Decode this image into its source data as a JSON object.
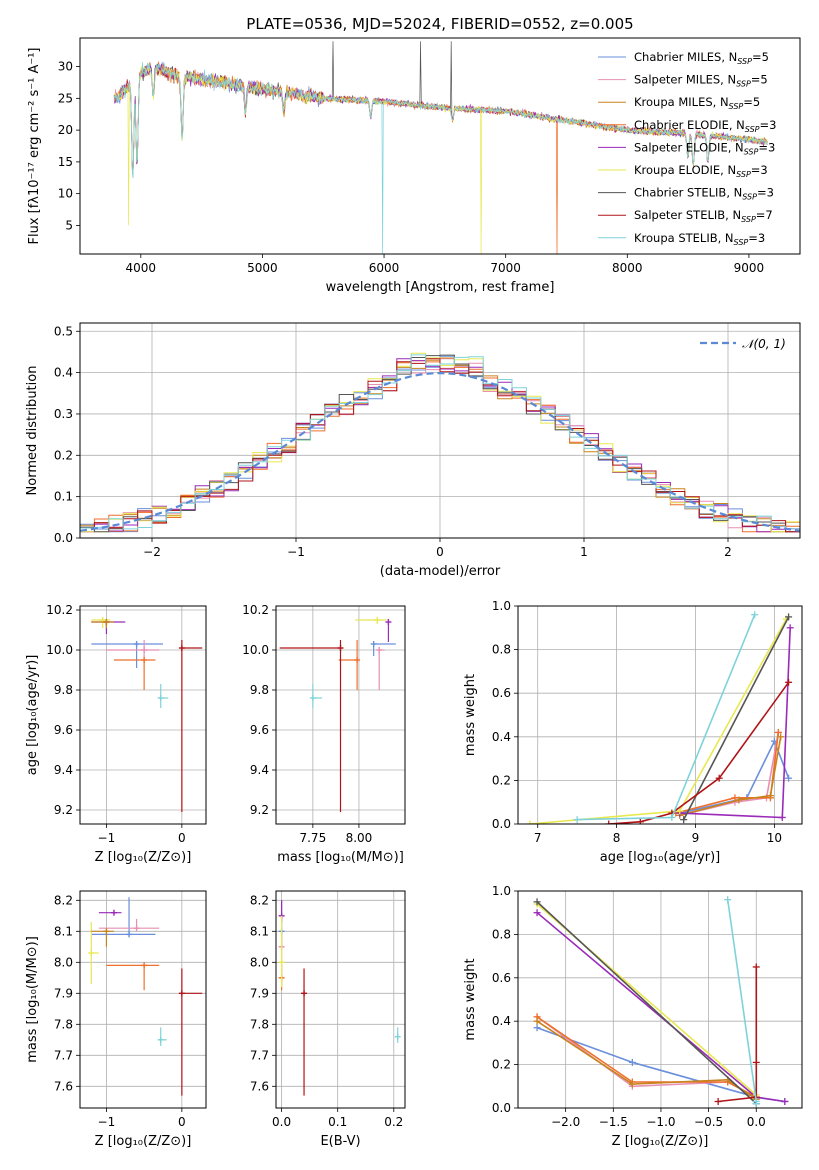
{
  "figure": {
    "title": "PLATE=0536, MJD=52024, FIBERID=0552, z=0.005",
    "colors": [
      "#6a8fdc",
      "#e88fb4",
      "#c8841c",
      "#ef6f2c",
      "#9a2ab8",
      "#e8e850",
      "#555555",
      "#b01418",
      "#7ed3da"
    ]
  },
  "chart_data": [
    {
      "id": "spectrum",
      "type": "line",
      "xlabel": "wavelength [Angstrom, rest frame]",
      "ylabel": "Flux [fλ10⁻¹⁷ erg cm⁻² s⁻¹ A⁻¹]",
      "xlim": [
        3500,
        9420
      ],
      "ylim": [
        0.5,
        34.5
      ],
      "xticks": [
        4000,
        5000,
        6000,
        7000,
        8000,
        9000
      ],
      "yticks": [
        5,
        10,
        15,
        20,
        25,
        30
      ],
      "legend_position": "top-right",
      "continuum": {
        "x": [
          3800,
          3900,
          4000,
          4100,
          4300,
          4500,
          5000,
          5500,
          6000,
          6500,
          7000,
          7500,
          8000,
          8500,
          9000,
          9200
        ],
        "y": [
          25,
          27,
          29,
          30,
          28.5,
          28,
          26.5,
          25,
          24.5,
          23.5,
          23,
          21.5,
          20,
          19.5,
          18.5,
          18
        ]
      },
      "series": [
        {
          "name": "Chabrier MILES, N",
          "sub": "SSP",
          "suffix": "=5"
        },
        {
          "name": "Salpeter MILES, N",
          "sub": "SSP",
          "suffix": "=5"
        },
        {
          "name": "Kroupa MILES, N",
          "sub": "SSP",
          "suffix": "=5"
        },
        {
          "name": "Chabrier ELODIE, N",
          "sub": "SSP",
          "suffix": "=3"
        },
        {
          "name": "Salpeter ELODIE, N",
          "sub": "SSP",
          "suffix": "=3"
        },
        {
          "name": "Kroupa ELODIE, N",
          "sub": "SSP",
          "suffix": "=3"
        },
        {
          "name": "Chabrier STELIB, N",
          "sub": "SSP",
          "suffix": "=3"
        },
        {
          "name": "Salpeter STELIB, N",
          "sub": "SSP",
          "suffix": "=7"
        },
        {
          "name": "Kroupa STELIB, N",
          "sub": "SSP",
          "suffix": "=3"
        }
      ]
    },
    {
      "id": "residuals",
      "type": "line",
      "xlabel": "(data-model)/error",
      "ylabel": "Normed distribution",
      "xlim": [
        -2.5,
        2.5
      ],
      "ylim": [
        0,
        0.52
      ],
      "xticks": [
        -2,
        -1,
        0,
        1,
        2
      ],
      "yticks": [
        0.0,
        0.1,
        0.2,
        0.3,
        0.4,
        0.5
      ],
      "grid": true,
      "legend_position": "top-right",
      "legend": "𝒩(0, 1)",
      "bin_width": 0.1
    },
    {
      "id": "age-vs-z",
      "type": "scatter",
      "xlabel": "Z [log₁₀(Z/Z⊙)]",
      "ylabel": "age  [log₁₀(age/yr)]",
      "xlim": [
        -1.35,
        0.32
      ],
      "ylim": [
        9.13,
        10.22
      ],
      "xticks": [
        -1,
        0
      ],
      "yticks": [
        9.2,
        9.4,
        9.6,
        9.8,
        10.0,
        10.2
      ],
      "grid": true,
      "points": [
        {
          "x": -0.6,
          "xerr": [
            0.6,
            0.35
          ],
          "y": 10.03,
          "yerr": [
            0.12,
            0.0
          ],
          "c": 0
        },
        {
          "x": -0.5,
          "xerr": [
            0.5,
            0.2
          ],
          "y": 10.0,
          "yerr": [
            0.05,
            0.05
          ],
          "c": 1
        },
        {
          "x": -0.5,
          "xerr": [
            0.4,
            0.15
          ],
          "y": 9.95,
          "yerr": [
            0.15,
            0.0
          ],
          "c": 3
        },
        {
          "x": -1.0,
          "xerr": [
            0.2,
            0.25
          ],
          "y": 10.14,
          "yerr": [
            0.06,
            0.01
          ],
          "c": 4
        },
        {
          "x": -1.05,
          "xerr": [
            0.15,
            0.1
          ],
          "y": 10.15,
          "yerr": [
            0.04,
            0.0
          ],
          "c": 5
        },
        {
          "x": -1.0,
          "xerr": [
            0.2,
            0.1
          ],
          "y": 10.14,
          "yerr": [
            0.03,
            0.0
          ],
          "c": 2
        },
        {
          "x": -0.28,
          "xerr": [
            0.02,
            0.1
          ],
          "y": 9.76,
          "yerr": [
            0.05,
            0.07
          ],
          "c": 8
        },
        {
          "x": 0.0,
          "xerr": [
            0.0,
            0.27
          ],
          "y": 10.01,
          "yerr": [
            0.82,
            0.04
          ],
          "c": 7
        }
      ]
    },
    {
      "id": "age-vs-mass",
      "type": "scatter",
      "xlabel": "mass [log₁₀(M/M⊙)]",
      "ylabel": "",
      "xlim": [
        7.55,
        8.25
      ],
      "ylim": [
        9.13,
        10.22
      ],
      "xticks": [
        7.75,
        8.0
      ],
      "yticks": [
        9.2,
        9.4,
        9.6,
        9.8,
        10.0,
        10.2
      ],
      "grid": true,
      "points": [
        {
          "x": 8.08,
          "xerr": [
            0.0,
            0.12
          ],
          "y": 10.03,
          "yerr": [
            0.06,
            0.0
          ],
          "c": 0
        },
        {
          "x": 8.11,
          "xerr": [
            0.0,
            0.03
          ],
          "y": 10.0,
          "yerr": [
            0.2,
            0.0
          ],
          "c": 1
        },
        {
          "x": 7.99,
          "xerr": [
            0.1,
            0.0
          ],
          "y": 9.95,
          "yerr": [
            0.15,
            0.1
          ],
          "c": 3
        },
        {
          "x": 8.16,
          "xerr": [
            0.0,
            0.0
          ],
          "y": 10.14,
          "yerr": [
            0.1,
            0.01
          ],
          "c": 4
        },
        {
          "x": 8.1,
          "xerr": [
            0.12,
            0.05
          ],
          "y": 10.15,
          "yerr": [
            0.02,
            0.0
          ],
          "c": 5
        },
        {
          "x": 7.75,
          "xerr": [
            0.0,
            0.05
          ],
          "y": 9.76,
          "yerr": [
            0.05,
            0.07
          ],
          "c": 8
        },
        {
          "x": 7.9,
          "xerr": [
            0.33,
            0.0
          ],
          "y": 10.01,
          "yerr": [
            0.82,
            0.04
          ],
          "c": 7
        }
      ]
    },
    {
      "id": "mass-weight-vs-age",
      "type": "line",
      "xlabel": "age  [log₁₀(age/yr)]",
      "ylabel": "mass weight",
      "xlim": [
        6.75,
        10.35
      ],
      "ylim": [
        0,
        1
      ],
      "xticks": [
        7,
        8,
        9,
        10
      ],
      "yticks": [
        0.0,
        0.2,
        0.4,
        0.6,
        0.8,
        1.0
      ],
      "grid": true,
      "series": [
        {
          "c": 0,
          "x": [
            8.8,
            9.65,
            10.0,
            10.18
          ],
          "y": [
            0.05,
            0.12,
            0.38,
            0.21
          ]
        },
        {
          "c": 1,
          "x": [
            8.8,
            9.5,
            9.9,
            10.05
          ],
          "y": [
            0.04,
            0.1,
            0.12,
            0.42
          ]
        },
        {
          "c": 3,
          "x": [
            8.75,
            9.5,
            9.95,
            10.05
          ],
          "y": [
            0.05,
            0.12,
            0.12,
            0.42
          ]
        },
        {
          "c": 2,
          "x": [
            8.8,
            9.55,
            9.95,
            10.08
          ],
          "y": [
            0.04,
            0.11,
            0.13,
            0.4
          ]
        },
        {
          "c": 4,
          "x": [
            8.8,
            10.1,
            10.2
          ],
          "y": [
            0.05,
            0.03,
            0.9
          ]
        },
        {
          "c": 5,
          "x": [
            6.9,
            8.8,
            10.15
          ],
          "y": [
            0.0,
            0.06,
            0.94
          ]
        },
        {
          "c": 6,
          "x": [
            8.85,
            10.18
          ],
          "y": [
            0.02,
            0.95
          ]
        },
        {
          "c": 7,
          "x": [
            7.9,
            8.3,
            8.7,
            9.3,
            10.18
          ],
          "y": [
            0.0,
            0.01,
            0.05,
            0.21,
            0.65
          ]
        },
        {
          "c": 8,
          "x": [
            7.5,
            8.7,
            9.75
          ],
          "y": [
            0.02,
            0.03,
            0.96
          ]
        }
      ]
    },
    {
      "id": "mass-vs-z",
      "type": "scatter",
      "xlabel": "Z [log₁₀(Z/Z⊙)]",
      "ylabel": "mass [log₁₀(M/M⊙)]",
      "xlim": [
        -1.35,
        0.32
      ],
      "ylim": [
        7.53,
        8.23
      ],
      "xticks": [
        -1,
        0
      ],
      "yticks": [
        7.6,
        7.7,
        7.8,
        7.9,
        8.0,
        8.1,
        8.2
      ],
      "grid": true,
      "points": [
        {
          "x": -0.7,
          "xerr": [
            0.5,
            0.35
          ],
          "y": 8.09,
          "yerr": [
            0.0,
            0.12
          ],
          "c": 0
        },
        {
          "x": -0.6,
          "xerr": [
            0.5,
            0.3
          ],
          "y": 8.11,
          "yerr": [
            0.0,
            0.03
          ],
          "c": 1
        },
        {
          "x": -0.5,
          "xerr": [
            0.5,
            0.2
          ],
          "y": 7.99,
          "yerr": [
            0.08,
            0.0
          ],
          "c": 3
        },
        {
          "x": -0.9,
          "xerr": [
            0.2,
            0.1
          ],
          "y": 8.16,
          "yerr": [
            0.0,
            0.0
          ],
          "c": 4
        },
        {
          "x": -1.2,
          "xerr": [
            0.0,
            0.1
          ],
          "y": 8.03,
          "yerr": [
            0.1,
            0.1
          ],
          "c": 5
        },
        {
          "x": -1.0,
          "xerr": [
            0.2,
            0.1
          ],
          "y": 8.1,
          "yerr": [
            0.05,
            0.0
          ],
          "c": 2
        },
        {
          "x": -0.28,
          "xerr": [
            0.02,
            0.08
          ],
          "y": 7.75,
          "yerr": [
            0.02,
            0.04
          ],
          "c": 8
        },
        {
          "x": 0.0,
          "xerr": [
            0.0,
            0.27
          ],
          "y": 7.9,
          "yerr": [
            0.33,
            0.08
          ],
          "c": 7
        }
      ]
    },
    {
      "id": "mass-vs-ebv",
      "type": "scatter",
      "xlabel": "E(B-V)",
      "ylabel": "",
      "xlim": [
        -0.01,
        0.22
      ],
      "ylim": [
        7.53,
        8.23
      ],
      "xticks": [
        0.0,
        0.1,
        0.2
      ],
      "yticks": [
        7.6,
        7.7,
        7.8,
        7.9,
        8.0,
        8.1,
        8.2
      ],
      "grid": true,
      "points": [
        {
          "x": 0.0,
          "xerr": [
            0,
            0
          ],
          "y": 8.1,
          "yerr": [
            0.05,
            0.1
          ],
          "c": 0
        },
        {
          "x": 0.0,
          "xerr": [
            0,
            0
          ],
          "y": 8.05,
          "yerr": [
            0.05,
            0.05
          ],
          "c": 1
        },
        {
          "x": 0.0,
          "xerr": [
            0,
            0
          ],
          "y": 7.95,
          "yerr": [
            0.04,
            0.04
          ],
          "c": 3
        },
        {
          "x": 0.0,
          "xerr": [
            0,
            0
          ],
          "y": 8.15,
          "yerr": [
            0.02,
            0.05
          ],
          "c": 4
        },
        {
          "x": 0.0,
          "xerr": [
            0,
            0
          ],
          "y": 8.0,
          "yerr": [
            0.08,
            0.15
          ],
          "c": 5
        },
        {
          "x": 0.04,
          "xerr": [
            0,
            0
          ],
          "y": 7.9,
          "yerr": [
            0.33,
            0.08
          ],
          "c": 7
        },
        {
          "x": 0.207,
          "xerr": [
            0,
            0
          ],
          "y": 7.76,
          "yerr": [
            0.02,
            0.03
          ],
          "c": 8
        }
      ]
    },
    {
      "id": "mass-weight-vs-z",
      "type": "line",
      "xlabel": "Z [log₁₀(Z/Z⊙)]",
      "ylabel": "mass weight",
      "xlim": [
        -2.5,
        0.48
      ],
      "ylim": [
        0,
        1
      ],
      "xticks": [
        -2.0,
        -1.5,
        -1.0,
        -0.5,
        0.0
      ],
      "yticks": [
        0.0,
        0.2,
        0.4,
        0.6,
        0.8,
        1.0
      ],
      "grid": true,
      "series": [
        {
          "c": 0,
          "x": [
            -2.3,
            -1.3,
            0.0,
            0.3
          ],
          "y": [
            0.37,
            0.21,
            0.05,
            0.03
          ]
        },
        {
          "c": 1,
          "x": [
            -2.3,
            -1.3,
            -0.3,
            0.0
          ],
          "y": [
            0.42,
            0.1,
            0.12,
            0.05
          ]
        },
        {
          "c": 3,
          "x": [
            -2.3,
            -1.3,
            -0.3,
            0.0
          ],
          "y": [
            0.42,
            0.12,
            0.12,
            0.05
          ]
        },
        {
          "c": 2,
          "x": [
            -2.3,
            -1.3,
            -0.3,
            0.0
          ],
          "y": [
            0.4,
            0.11,
            0.13,
            0.04
          ]
        },
        {
          "c": 4,
          "x": [
            -2.3,
            0.0,
            0.3
          ],
          "y": [
            0.9,
            0.05,
            0.03
          ]
        },
        {
          "c": 5,
          "x": [
            -2.3,
            0.0
          ],
          "y": [
            0.94,
            0.06
          ]
        },
        {
          "c": 6,
          "x": [
            -2.3,
            0.0
          ],
          "y": [
            0.95,
            0.02
          ]
        },
        {
          "c": 7,
          "x": [
            -0.4,
            0.0,
            0.0,
            0.0
          ],
          "y": [
            0.03,
            0.05,
            0.21,
            0.65
          ]
        },
        {
          "c": 8,
          "x": [
            -0.3,
            0.0,
            0.0
          ],
          "y": [
            0.96,
            0.03,
            0.02
          ]
        }
      ]
    }
  ]
}
